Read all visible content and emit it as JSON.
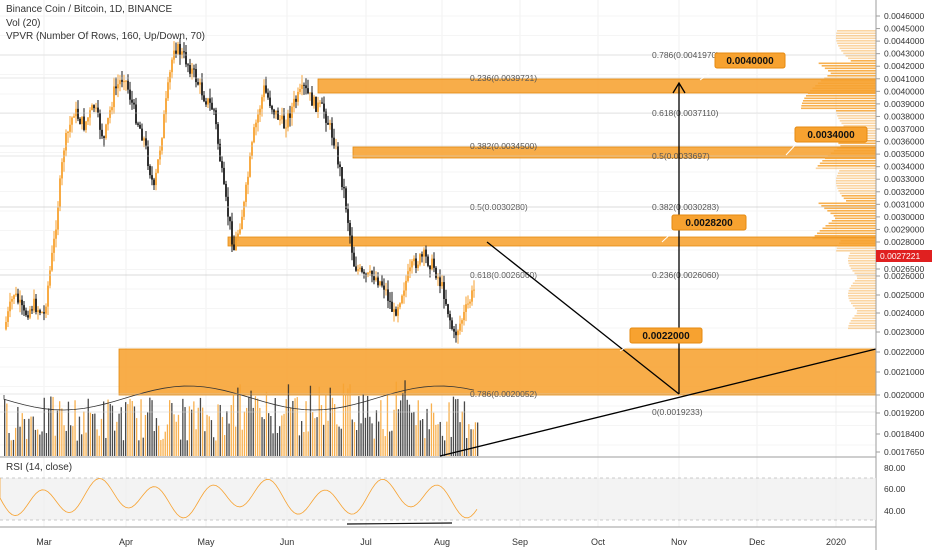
{
  "header": {
    "title": "Binance Coin / Bitcoin, 1D, BINANCE",
    "vol_label": "Vol (20)",
    "vpvr_label": "VPVR (Number Of Rows, 160, Up/Down, 70)",
    "rsi_label": "RSI (14, close)"
  },
  "chart_data": {
    "type": "candlestick",
    "symbol": "Binance Coin / Bitcoin",
    "interval": "1D",
    "exchange": "BINANCE",
    "current_price": "0.0027221",
    "price_axis_ticks": [
      "0.0046000",
      "0.0045000",
      "0.0044000",
      "0.0043000",
      "0.0042000",
      "0.0041000",
      "0.0040000",
      "0.0039000",
      "0.0038000",
      "0.0037000",
      "0.0036000",
      "0.0035000",
      "0.0034000",
      "0.0033000",
      "0.0032000",
      "0.0031000",
      "0.0030000",
      "0.0029000",
      "0.0028000",
      "0.0026500",
      "0.0026000",
      "0.0025000",
      "0.0024000",
      "0.0023000",
      "0.0022000",
      "0.0021000",
      "0.0020000",
      "0.0019200",
      "0.0018400",
      "0.0017650"
    ],
    "time_axis_ticks": [
      "Mar",
      "Apr",
      "May",
      "Jun",
      "Jul",
      "Aug",
      "Sep",
      "Oct",
      "Nov",
      "Dec",
      "2020"
    ],
    "rsi_axis_ticks": [
      "80.00",
      "60.00",
      "40.00"
    ],
    "fib_left": [
      {
        "label": "0.786(0.0041970)",
        "price": 0.004197
      },
      {
        "label": "0.236(0.0039721)",
        "price": 0.0039721
      },
      {
        "label": "0.618(0.0037110)",
        "price": 0.003711
      },
      {
        "label": "0.382(0.0034500)",
        "price": 0.00345
      },
      {
        "label": "0.5(0.0033697)",
        "price": 0.0033697
      },
      {
        "label": "0.5(0.0030280)",
        "price": 0.003028
      },
      {
        "label": "0.382(0.0030283)",
        "price": 0.0030283
      },
      {
        "label": "0.618(0.0026060)",
        "price": 0.002606
      },
      {
        "label": "0.236(0.0026060)",
        "price": 0.002606
      },
      {
        "label": "0.786(0.0020052)",
        "price": 0.0020052
      },
      {
        "label": "0(0.0019233)",
        "price": 0.0019233
      }
    ],
    "zone_labels": [
      "0.0040000",
      "0.0034000",
      "0.0028200",
      "0.0022000"
    ],
    "zones": [
      {
        "top": 0.00402,
        "bottom": 0.00393
      },
      {
        "top": 0.00345,
        "bottom": 0.00338
      },
      {
        "top": 0.002845,
        "bottom": 0.00279
      },
      {
        "top": 0.00222,
        "bottom": 0.0020052
      }
    ],
    "price_path": [
      {
        "x": 0,
        "p": 0.00245
      },
      {
        "x": 10,
        "p": 0.0027
      },
      {
        "x": 20,
        "p": 0.00255
      },
      {
        "x": 30,
        "p": 0.00262
      },
      {
        "x": 40,
        "p": 0.00255
      },
      {
        "x": 50,
        "p": 0.00305
      },
      {
        "x": 60,
        "p": 0.0037
      },
      {
        "x": 70,
        "p": 0.00395
      },
      {
        "x": 80,
        "p": 0.00385
      },
      {
        "x": 90,
        "p": 0.00398
      },
      {
        "x": 100,
        "p": 0.00375
      },
      {
        "x": 110,
        "p": 0.00408
      },
      {
        "x": 120,
        "p": 0.0042
      },
      {
        "x": 130,
        "p": 0.00395
      },
      {
        "x": 140,
        "p": 0.00375
      },
      {
        "x": 150,
        "p": 0.0034
      },
      {
        "x": 160,
        "p": 0.0039
      },
      {
        "x": 170,
        "p": 0.0044
      },
      {
        "x": 180,
        "p": 0.00432
      },
      {
        "x": 190,
        "p": 0.0042
      },
      {
        "x": 200,
        "p": 0.00405
      },
      {
        "x": 210,
        "p": 0.00395
      },
      {
        "x": 220,
        "p": 0.0034
      },
      {
        "x": 230,
        "p": 0.003
      },
      {
        "x": 240,
        "p": 0.0033
      },
      {
        "x": 250,
        "p": 0.0038
      },
      {
        "x": 260,
        "p": 0.0041
      },
      {
        "x": 270,
        "p": 0.00395
      },
      {
        "x": 280,
        "p": 0.00385
      },
      {
        "x": 290,
        "p": 0.004
      },
      {
        "x": 300,
        "p": 0.0041
      },
      {
        "x": 310,
        "p": 0.004
      },
      {
        "x": 320,
        "p": 0.00395
      },
      {
        "x": 330,
        "p": 0.00375
      },
      {
        "x": 340,
        "p": 0.0034
      },
      {
        "x": 350,
        "p": 0.0029
      },
      {
        "x": 360,
        "p": 0.0028
      },
      {
        "x": 370,
        "p": 0.00282
      },
      {
        "x": 380,
        "p": 0.00275
      },
      {
        "x": 390,
        "p": 0.00255
      },
      {
        "x": 400,
        "p": 0.00275
      },
      {
        "x": 410,
        "p": 0.0029
      },
      {
        "x": 420,
        "p": 0.00295
      },
      {
        "x": 430,
        "p": 0.00288
      },
      {
        "x": 440,
        "p": 0.0027
      },
      {
        "x": 450,
        "p": 0.0024
      },
      {
        "x": 460,
        "p": 0.00255
      },
      {
        "x": 470,
        "p": 0.00272
      }
    ]
  }
}
